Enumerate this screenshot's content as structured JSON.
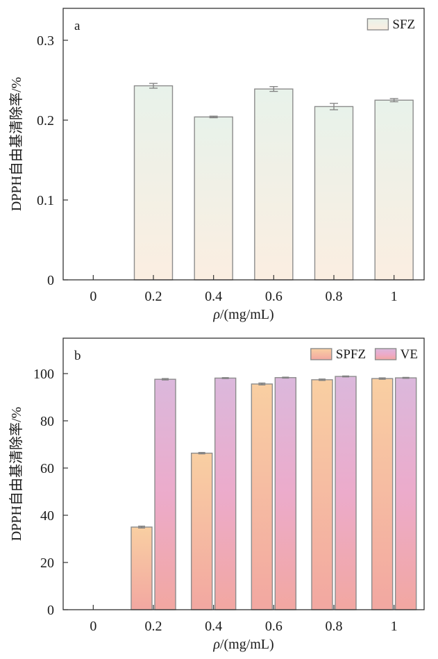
{
  "chart_data": [
    {
      "type": "bar",
      "panel_label": "a",
      "categories": [
        "0",
        "0.2",
        "0.4",
        "0.6",
        "0.8",
        "1"
      ],
      "xlabel_symbol": "ρ",
      "xlabel_unit": "/(mg/mL)",
      "ylabel": "DPPH自由基清除率/%",
      "ylim": [
        0,
        0.34
      ],
      "yticks": [
        "0",
        "0.1",
        "0.2",
        "0.3"
      ],
      "ytick_values": [
        0,
        0.1,
        0.2,
        0.3
      ],
      "legend_position": "top-right",
      "series": [
        {
          "name": "SFZ",
          "values": [
            0,
            0.243,
            0.204,
            0.239,
            0.217,
            0.225
          ],
          "errors": [
            0,
            0.003,
            0.001,
            0.003,
            0.004,
            0.002
          ],
          "color_top": "#e8f2ea",
          "color_bottom": "#fbeee1"
        }
      ]
    },
    {
      "type": "bar",
      "panel_label": "b",
      "categories": [
        "0",
        "0.2",
        "0.4",
        "0.6",
        "0.8",
        "1"
      ],
      "xlabel_symbol": "ρ",
      "xlabel_unit": "/(mg/mL)",
      "ylabel": "DPPH自由基清除率/%",
      "ylim": [
        0,
        115
      ],
      "yticks": [
        "0",
        "20",
        "40",
        "60",
        "80",
        "100"
      ],
      "ytick_values": [
        0,
        20,
        40,
        60,
        80,
        100
      ],
      "legend_position": "top-right",
      "series": [
        {
          "name": "SPFZ",
          "values": [
            0,
            35.0,
            66.3,
            95.6,
            97.4,
            97.9
          ],
          "errors": [
            0,
            0.4,
            0.3,
            0.4,
            0.3,
            0.3
          ],
          "color_top": "#f9cfa2",
          "color_bottom": "#f2a7a1"
        },
        {
          "name": "VE",
          "values": [
            0,
            97.6,
            98.1,
            98.3,
            98.8,
            98.2
          ],
          "errors": [
            0,
            0.3,
            0.2,
            0.2,
            0.2,
            0.2
          ],
          "color_top": "#dbb8dc",
          "color_mid": "#ecabcb",
          "color_bottom": "#f2a7a1"
        }
      ]
    }
  ]
}
